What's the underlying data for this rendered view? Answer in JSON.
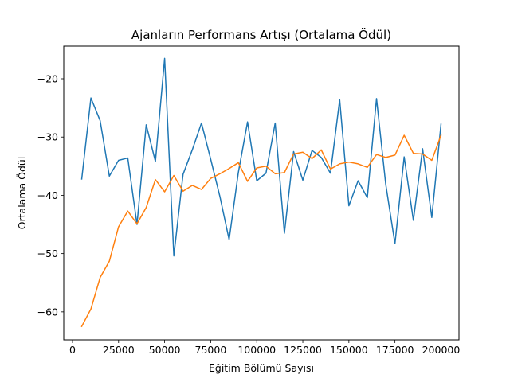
{
  "chart_data": {
    "type": "line",
    "title": "Ajanların Performans Artışı (Ortalama Ödül)",
    "xlabel": "Eğitim Bölümü Sayısı",
    "ylabel": "Ortalama Ödül",
    "xlim": [
      -4750,
      209750
    ],
    "ylim": [
      -64.8,
      -14.4
    ],
    "xticks": [
      0,
      25000,
      50000,
      75000,
      100000,
      125000,
      150000,
      175000,
      200000
    ],
    "xtick_labels": [
      "0",
      "25000",
      "50000",
      "75000",
      "100000",
      "125000",
      "150000",
      "175000",
      "200000"
    ],
    "yticks": [
      -60,
      -50,
      -40,
      -30,
      -20
    ],
    "ytick_labels": [
      "−60",
      "−50",
      "−40",
      "−30",
      "−20"
    ],
    "grid": false,
    "legend": false,
    "x": [
      5000,
      10000,
      15000,
      20000,
      25000,
      30000,
      35000,
      40000,
      45000,
      50000,
      55000,
      60000,
      65000,
      70000,
      75000,
      80000,
      85000,
      90000,
      95000,
      100000,
      105000,
      110000,
      115000,
      120000,
      125000,
      130000,
      135000,
      140000,
      145000,
      150000,
      155000,
      160000,
      165000,
      170000,
      175000,
      180000,
      185000,
      190000,
      195000,
      200000
    ],
    "series": [
      {
        "color": "#1f77b4",
        "values": [
          -37.2,
          -23.3,
          -27.2,
          -36.7,
          -34.0,
          -33.6,
          -45.0,
          -27.9,
          -34.2,
          -16.5,
          -50.4,
          -36.4,
          -32.2,
          -27.6,
          -33.8,
          -40.2,
          -47.6,
          -36.1,
          -27.4,
          -37.5,
          -36.2,
          -27.6,
          -46.5,
          -32.5,
          -37.4,
          -32.3,
          -33.5,
          -36.2,
          -23.6,
          -41.8,
          -37.5,
          -40.4,
          -23.4,
          -38.1,
          -48.3,
          -33.4,
          -44.3,
          -32.0,
          -43.8,
          -27.8
        ]
      },
      {
        "color": "#ff7f0e",
        "values": [
          -62.5,
          -59.5,
          -54.1,
          -51.3,
          -45.4,
          -42.7,
          -44.9,
          -42.1,
          -37.3,
          -39.4,
          -36.6,
          -39.3,
          -38.3,
          -39.0,
          -37.1,
          -36.3,
          -35.4,
          -34.4,
          -37.6,
          -35.3,
          -35.0,
          -36.3,
          -36.1,
          -32.9,
          -32.6,
          -33.7,
          -32.2,
          -35.5,
          -34.6,
          -34.3,
          -34.6,
          -35.2,
          -33.0,
          -33.5,
          -33.1,
          -29.7,
          -32.8,
          -32.9,
          -34.0,
          -29.7
        ]
      }
    ]
  }
}
